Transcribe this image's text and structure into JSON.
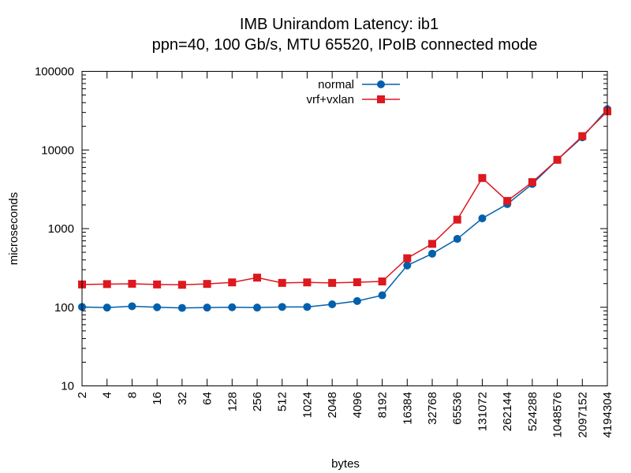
{
  "chart_data": {
    "type": "line",
    "title": "IMB Unirandom Latency: ib1",
    "subtitle": "ppn=40, 100 Gb/s, MTU 65520, IPoIB connected mode",
    "xlabel": "bytes",
    "ylabel": "microseconds",
    "xscale": "log",
    "yscale": "log",
    "ylim": [
      10,
      100000
    ],
    "y_ticks": [
      "10",
      "100",
      "1000",
      "10000",
      "100000"
    ],
    "x": [
      2,
      4,
      8,
      16,
      32,
      64,
      128,
      256,
      512,
      1024,
      2048,
      4096,
      8192,
      16384,
      32768,
      65536,
      131072,
      262144,
      524288,
      1048576,
      2097152,
      4194304
    ],
    "x_tick_labels": [
      "2",
      "4",
      "8",
      "16",
      "32",
      "64",
      "128",
      "256",
      "512",
      "1024",
      "2048",
      "4096",
      "8192",
      "16384",
      "32768",
      "65536",
      "131072",
      "262144",
      "524288",
      "1048576",
      "2097152",
      "4194304"
    ],
    "legend_position": "top-center",
    "grid": false,
    "series": [
      {
        "name": "normal",
        "color": "#0060ad",
        "marker": "circle",
        "values": [
          101,
          99,
          103,
          100,
          98,
          99,
          100,
          99,
          101,
          101,
          109,
          120,
          142,
          340,
          480,
          740,
          1350,
          2050,
          3700,
          7500,
          14500,
          33000
        ]
      },
      {
        "name": "vrf+vxlan",
        "color": "#dd181f",
        "marker": "square",
        "values": [
          195,
          197,
          199,
          195,
          193,
          198,
          207,
          238,
          204,
          207,
          204,
          208,
          213,
          420,
          640,
          1300,
          4400,
          2250,
          3900,
          7500,
          15000,
          31000
        ]
      }
    ]
  }
}
